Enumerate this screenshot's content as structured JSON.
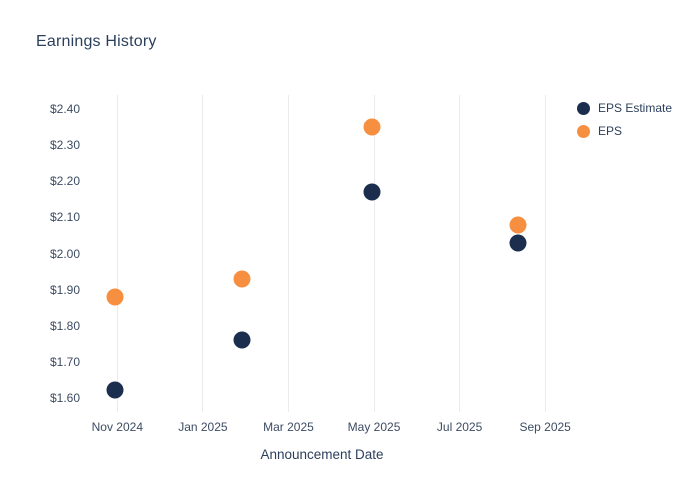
{
  "title": "Earnings History",
  "chart_data": {
    "type": "scatter",
    "title": "Earnings History",
    "xlabel": "Announcement Date",
    "ylabel": "",
    "grid": "vertical",
    "legend_position": "top-right",
    "x_range_dates": [
      "2024-10-12",
      "2025-09-08"
    ],
    "ylim": [
      1.56,
      2.44
    ],
    "x_ticks": [
      {
        "label": "Nov 2024",
        "date": "2024-11-01"
      },
      {
        "label": "Jan 2025",
        "date": "2025-01-01"
      },
      {
        "label": "Mar 2025",
        "date": "2025-03-01"
      },
      {
        "label": "May 2025",
        "date": "2025-05-01"
      },
      {
        "label": "Jul 2025",
        "date": "2025-07-01"
      },
      {
        "label": "Sep 2025",
        "date": "2025-09-01"
      }
    ],
    "y_ticks": [
      {
        "label": "$2.40",
        "value": 2.4
      },
      {
        "label": "$2.30",
        "value": 2.3
      },
      {
        "label": "$2.20",
        "value": 2.2
      },
      {
        "label": "$2.10",
        "value": 2.1
      },
      {
        "label": "$2.00",
        "value": 2.0
      },
      {
        "label": "$1.90",
        "value": 1.9
      },
      {
        "label": "$1.80",
        "value": 1.8
      },
      {
        "label": "$1.70",
        "value": 1.7
      },
      {
        "label": "$1.60",
        "value": 1.6
      }
    ],
    "series": [
      {
        "name": "EPS Estimate",
        "color": "#1c2e4e",
        "points": [
          {
            "date": "2024-10-30",
            "value": 1.62
          },
          {
            "date": "2025-01-29",
            "value": 1.76
          },
          {
            "date": "2025-04-30",
            "value": 2.17
          },
          {
            "date": "2025-08-12",
            "value": 2.03
          }
        ]
      },
      {
        "name": "EPS",
        "color": "#f78f41",
        "points": [
          {
            "date": "2024-10-30",
            "value": 1.88
          },
          {
            "date": "2025-01-29",
            "value": 1.93
          },
          {
            "date": "2025-04-30",
            "value": 2.35
          },
          {
            "date": "2025-08-12",
            "value": 2.08
          }
        ]
      }
    ]
  }
}
